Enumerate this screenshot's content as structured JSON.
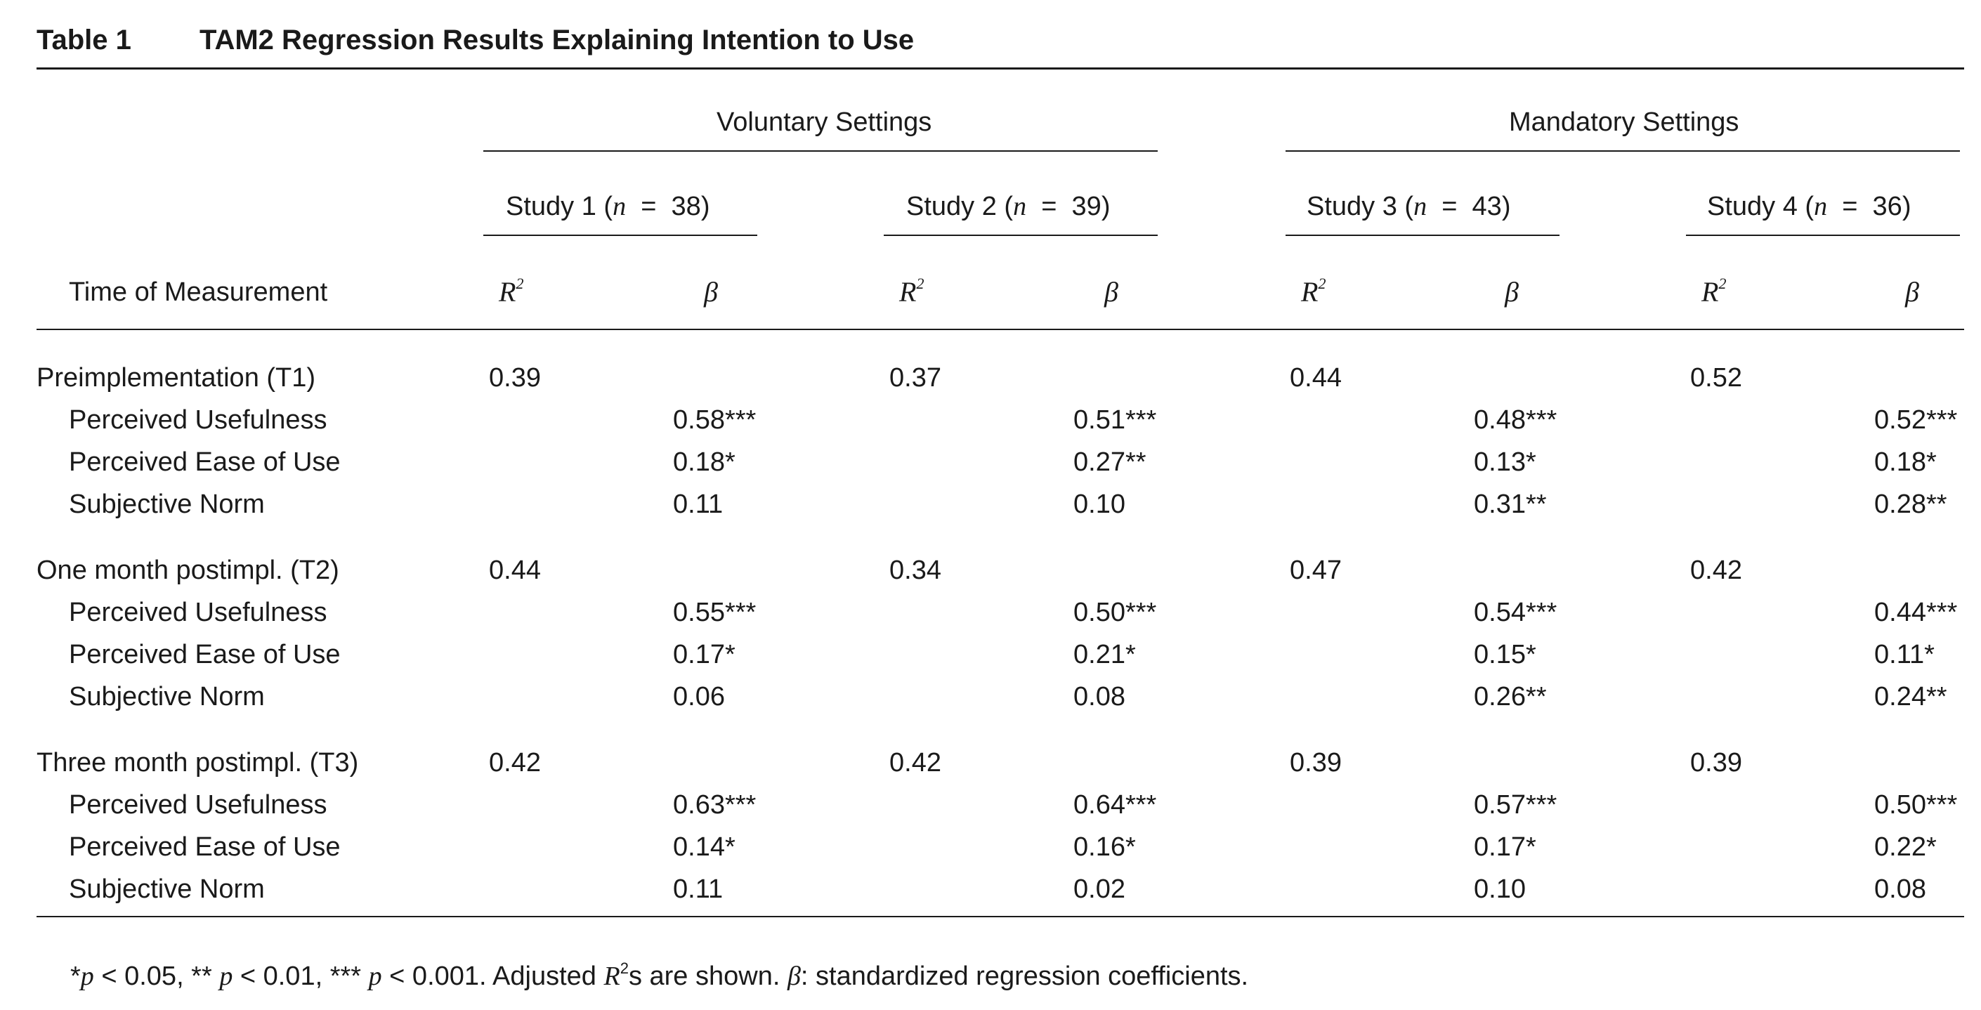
{
  "table": {
    "label": "Table 1",
    "title": "TAM2 Regression Results Explaining Intention to Use",
    "group_headers": [
      "Voluntary Settings",
      "Mandatory Settings"
    ],
    "studies": [
      {
        "name": "Study 1",
        "n_symbol": "n",
        "eq": "=",
        "n": "38"
      },
      {
        "name": "Study 2",
        "n_symbol": "n",
        "eq": "=",
        "n": "39"
      },
      {
        "name": "Study 3",
        "n_symbol": "n",
        "eq": "=",
        "n": "43"
      },
      {
        "name": "Study 4",
        "n_symbol": "n",
        "eq": "=",
        "n": "36"
      }
    ],
    "row_header": "Time of Measurement",
    "r2_label": "R",
    "r2_sup": "2",
    "beta_label": "β",
    "sections": [
      {
        "label": "Preimplementation (T1)",
        "r2": [
          "0.39",
          "0.37",
          "0.44",
          "0.52"
        ],
        "rows": [
          {
            "label": "Perceived Usefulness",
            "beta": [
              "0.58***",
              "0.51***",
              "0.48***",
              "0.52***"
            ]
          },
          {
            "label": "Perceived Ease of Use",
            "beta": [
              "0.18*",
              "0.27**",
              "0.13*",
              "0.18*"
            ]
          },
          {
            "label": "Subjective Norm",
            "beta": [
              "0.11",
              "0.10",
              "0.31**",
              "0.28**"
            ]
          }
        ]
      },
      {
        "label": "One month postimpl. (T2)",
        "r2": [
          "0.44",
          "0.34",
          "0.47",
          "0.42"
        ],
        "rows": [
          {
            "label": "Perceived Usefulness",
            "beta": [
              "0.55***",
              "0.50***",
              "0.54***",
              "0.44***"
            ]
          },
          {
            "label": "Perceived Ease of Use",
            "beta": [
              "0.17*",
              "0.21*",
              "0.15*",
              "0.11*"
            ]
          },
          {
            "label": "Subjective Norm",
            "beta": [
              "0.06",
              "0.08",
              "0.26**",
              "0.24**"
            ]
          }
        ]
      },
      {
        "label": "Three month postimpl. (T3)",
        "r2": [
          "0.42",
          "0.42",
          "0.39",
          "0.39"
        ],
        "rows": [
          {
            "label": "Perceived Usefulness",
            "beta": [
              "0.63***",
              "0.64***",
              "0.57***",
              "0.50***"
            ]
          },
          {
            "label": "Perceived Ease of Use",
            "beta": [
              "0.14*",
              "0.16*",
              "0.17*",
              "0.22*"
            ]
          },
          {
            "label": "Subjective Norm",
            "beta": [
              "0.11",
              "0.02",
              "0.10",
              "0.08"
            ]
          }
        ]
      }
    ]
  },
  "footnote": {
    "s1": "*",
    "p1": "p",
    "t1": " < 0.05, ** ",
    "p2": "p",
    "t2": " < 0.01, *** ",
    "p3": "p",
    "t3": " < 0.001. Adjusted ",
    "r": "R",
    "sup": "2",
    "t4": "s are shown. ",
    "beta": "β",
    "t5": ": standardized regression coefficients."
  }
}
